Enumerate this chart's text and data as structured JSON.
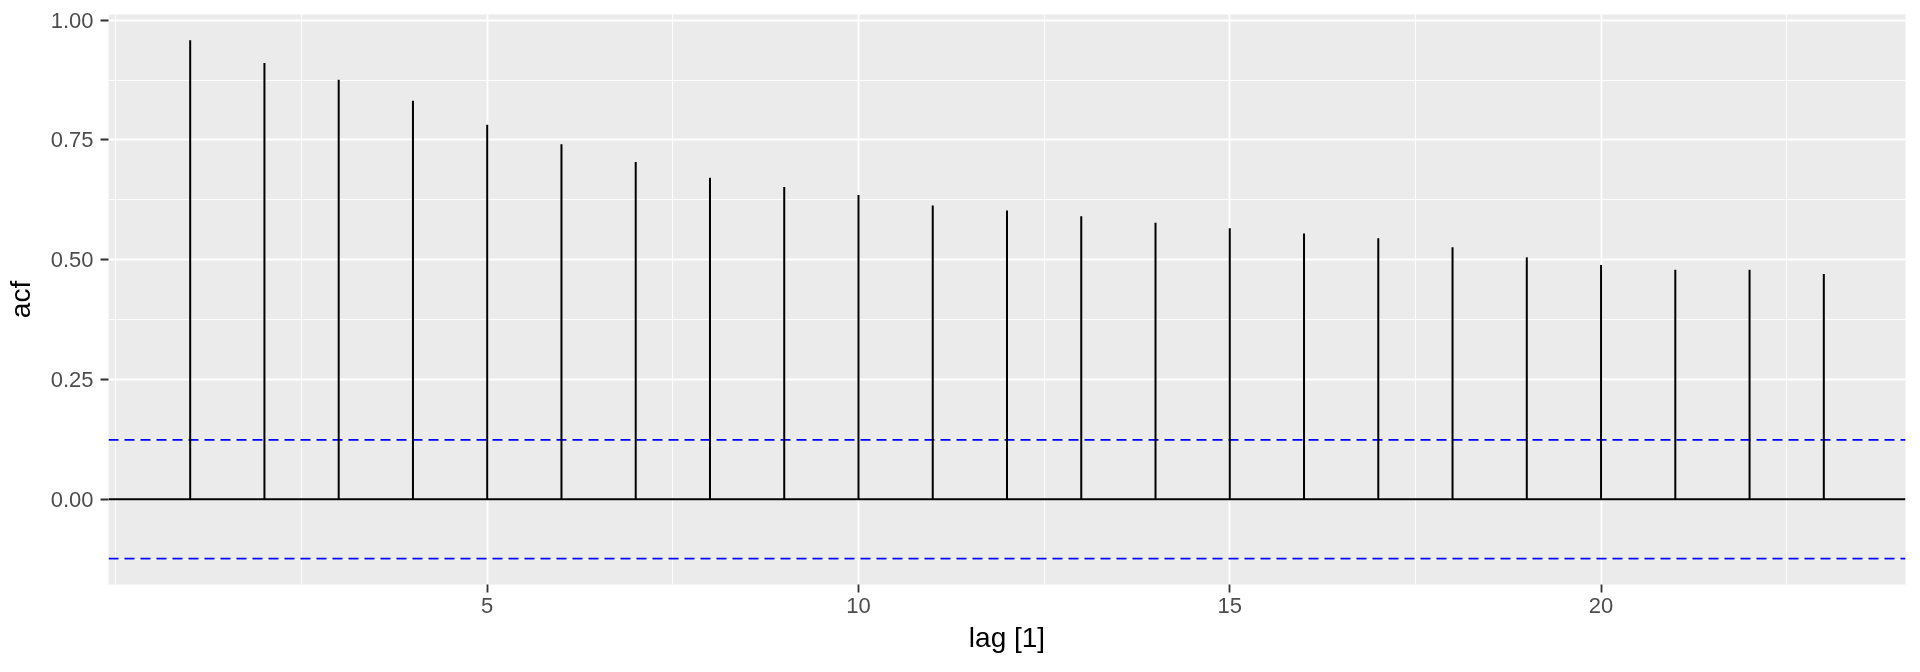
{
  "chart_data": {
    "type": "bar",
    "xlabel": "lag [1]",
    "ylabel": "acf",
    "x": [
      1,
      2,
      3,
      4,
      5,
      6,
      7,
      8,
      9,
      10,
      11,
      12,
      13,
      14,
      15,
      16,
      17,
      18,
      19,
      20,
      21,
      22,
      23
    ],
    "values": [
      0.958,
      0.911,
      0.876,
      0.832,
      0.782,
      0.741,
      0.704,
      0.671,
      0.652,
      0.635,
      0.613,
      0.603,
      0.591,
      0.577,
      0.566,
      0.555,
      0.545,
      0.526,
      0.505,
      0.489,
      0.479,
      0.479,
      0.47
    ],
    "color": "#000000",
    "xlim": [
      -0.1,
      24.1
    ],
    "xticks": [
      5,
      10,
      15,
      20
    ],
    "ylim": [
      -0.178,
      1.012
    ],
    "yticks": [
      {
        "value": 0,
        "label": "0.00"
      },
      {
        "value": 0.25,
        "label": "0.25"
      },
      {
        "value": 0.5,
        "label": "0.50"
      },
      {
        "value": 0.75,
        "label": "0.75"
      },
      {
        "value": 1,
        "label": "1.00"
      }
    ],
    "grid": true,
    "ref_lines": [
      {
        "axis": "y",
        "value": 0,
        "color": "#000000",
        "line_style": "solid"
      },
      {
        "axis": "y",
        "value": 0.124,
        "color": "#0000ff",
        "line_style": "dashed"
      },
      {
        "axis": "y",
        "value": -0.124,
        "color": "#0000ff",
        "line_style": "dashed"
      }
    ]
  }
}
